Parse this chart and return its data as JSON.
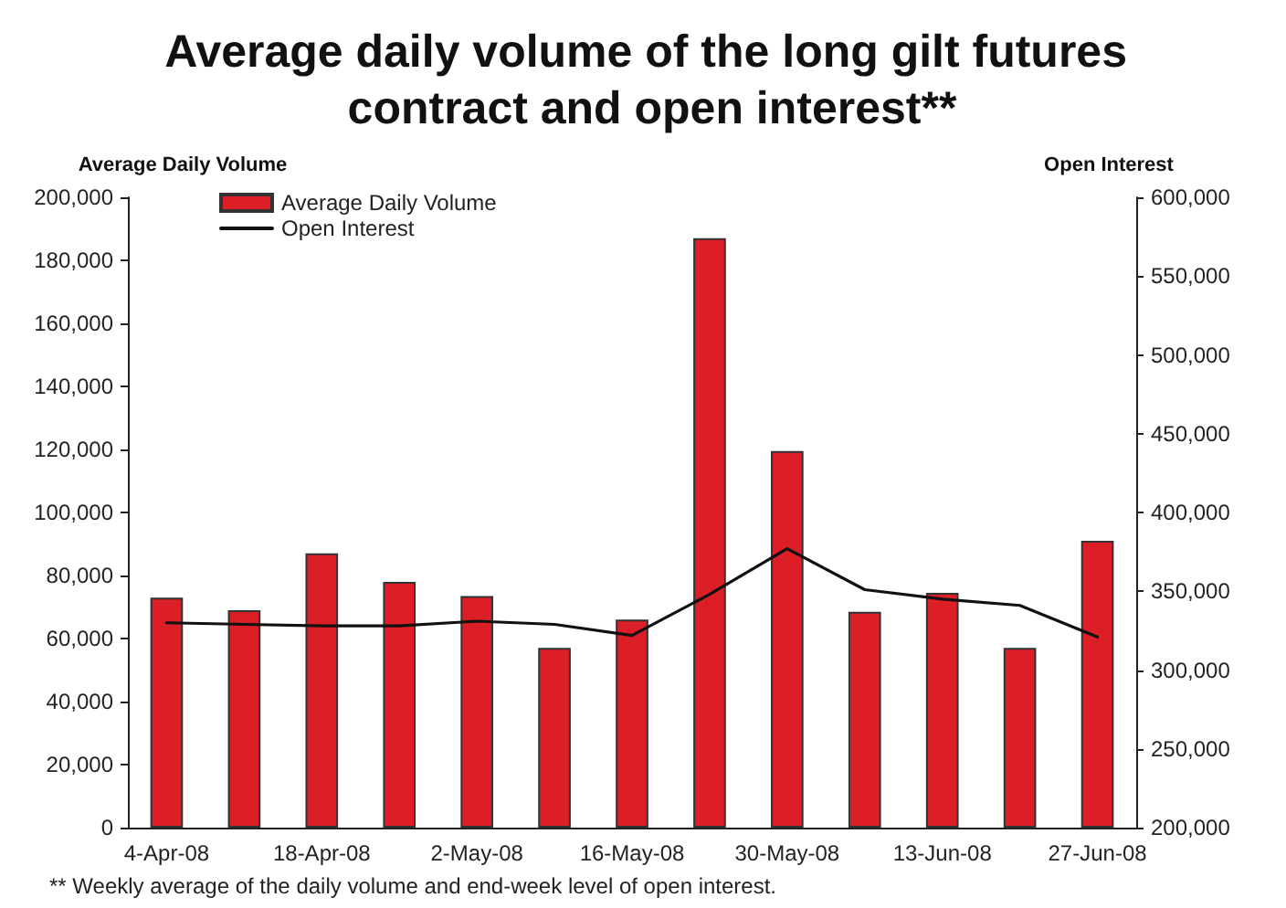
{
  "chart_data": {
    "type": "bar",
    "title": "Average daily volume of the long gilt futures contract and open interest**",
    "ylabel": "Average Daily Volume",
    "y2label": "Open Interest",
    "categories": [
      "4-Apr-08",
      null,
      "18-Apr-08",
      null,
      "2-May-08",
      null,
      "16-May-08",
      null,
      "30-May-08",
      null,
      "13-Jun-08",
      null,
      "27-Jun-08"
    ],
    "series": [
      {
        "name": "Average Daily Volume",
        "color": "#dc1f26",
        "values": [
          73000,
          69000,
          87000,
          78000,
          73500,
          57000,
          66000,
          187000,
          119500,
          68500,
          74500,
          57000,
          91000
        ]
      },
      {
        "name": "Open Interest",
        "type": "line",
        "axis": "y2",
        "color": "#111111",
        "values": [
          330000,
          329000,
          328000,
          328000,
          331000,
          329000,
          322000,
          348000,
          377000,
          351000,
          345000,
          341000,
          321000
        ]
      }
    ],
    "ylim": [
      0,
      200000
    ],
    "yticks": [
      0,
      {
        "value": 20000,
        "label": "20,000"
      },
      {
        "value": 40000,
        "label": "40,000"
      },
      {
        "value": 60000,
        "label": "60,000"
      },
      {
        "value": 80000,
        "label": "80,000"
      },
      {
        "value": 100000,
        "label": "100,000"
      },
      {
        "value": 120000,
        "label": "120,000"
      },
      {
        "value": 140000,
        "label": "140,000"
      },
      {
        "value": 160000,
        "label": "160,000"
      },
      {
        "value": 180000,
        "label": "180,000"
      },
      {
        "value": 200000,
        "label": "200,000"
      }
    ],
    "y2lim": [
      200000,
      600000
    ],
    "y2ticks": [
      {
        "value": 200000,
        "label": "200,000"
      },
      {
        "value": 250000,
        "label": "250,000"
      },
      {
        "value": 300000,
        "label": "300,000"
      },
      {
        "value": 350000,
        "label": "350,000"
      },
      {
        "value": 400000,
        "label": "400,000"
      },
      {
        "value": 450000,
        "label": "450,000"
      },
      {
        "value": 500000,
        "label": "500,000"
      },
      {
        "value": 550000,
        "label": "550,000"
      },
      {
        "value": 600000,
        "label": "600,000"
      }
    ],
    "grid": false,
    "legend": "top left",
    "marker": "none",
    "line_style": "solid",
    "annotations": [
      "** Weekly average of the daily volume and end-week level of open interest."
    ]
  }
}
